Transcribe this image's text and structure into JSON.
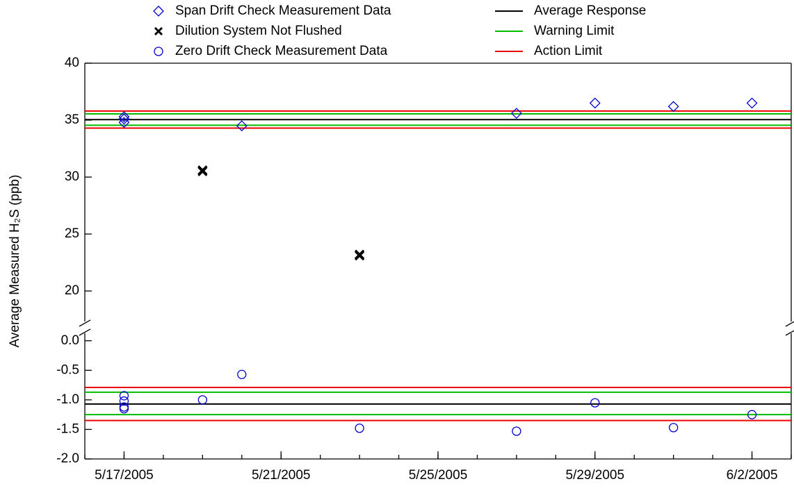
{
  "chart_data": [
    {
      "type": "scatter",
      "ylabel": "Average Measured H₂S (ppb)",
      "ylim": [
        17.2,
        40
      ],
      "yticks": [
        20,
        25,
        30,
        35,
        40
      ],
      "series": [
        {
          "name": "Span Drift Check Measurement Data",
          "color": "#0000cc",
          "marker": "diamond",
          "x": [
            "5/17/2005",
            "5/17/2005",
            "5/17/2005",
            "5/20/2005",
            "5/27/2005",
            "5/29/2005",
            "5/31/2005",
            "6/2/2005"
          ],
          "values": [
            35.3,
            35.1,
            34.8,
            34.5,
            35.6,
            36.5,
            36.2,
            36.5
          ]
        },
        {
          "name": "Dilution System Not Flushed",
          "color": "#000000",
          "marker": "x",
          "x": [
            "5/19/2005",
            "5/19/2005",
            "5/23/2005",
            "5/23/2005"
          ],
          "values": [
            30.6,
            30.5,
            23.2,
            23.1
          ]
        }
      ],
      "hlines": [
        {
          "name": "Average Response",
          "color": "#000000",
          "values": [
            35.05
          ]
        },
        {
          "name": "Warning Limit",
          "color": "#00bb00",
          "values": [
            35.55,
            34.55
          ]
        },
        {
          "name": "Action Limit",
          "color": "#ee0000",
          "values": [
            35.8,
            34.3
          ]
        }
      ]
    },
    {
      "type": "scatter",
      "xlim": [
        "5/16/2005",
        "6/3/2005"
      ],
      "xticks": [
        "5/17/2005",
        "5/21/2005",
        "5/25/2005",
        "5/29/2005",
        "6/2/2005"
      ],
      "ylim": [
        -2,
        0.15
      ],
      "yticks": [
        {
          "value": 0,
          "label": "0.0"
        },
        -0.5,
        {
          "value": -1,
          "label": "-1.0"
        },
        -1.5,
        {
          "value": -2,
          "label": "-2.0"
        }
      ],
      "series": [
        {
          "name": "Zero Drift Check Measurement Data",
          "color": "#0000cc",
          "marker": "circle",
          "x": [
            "5/17/2005",
            "5/17/2005",
            "5/17/2005",
            "5/17/2005",
            "5/19/2005",
            "5/20/2005",
            "5/23/2005",
            "5/27/2005",
            "5/29/2005",
            "5/31/2005",
            "6/2/2005"
          ],
          "values": [
            -0.93,
            -1.02,
            -1.12,
            -1.15,
            -1.0,
            -0.57,
            -1.48,
            -1.53,
            -1.05,
            -1.47,
            -1.25
          ]
        }
      ],
      "hlines": [
        {
          "color": "#000000",
          "values": [
            -1.07
          ]
        },
        {
          "color": "#00bb00",
          "values": [
            -0.87,
            -1.25
          ]
        },
        {
          "color": "#ee0000",
          "values": [
            -0.79,
            -1.35
          ]
        }
      ]
    }
  ]
}
